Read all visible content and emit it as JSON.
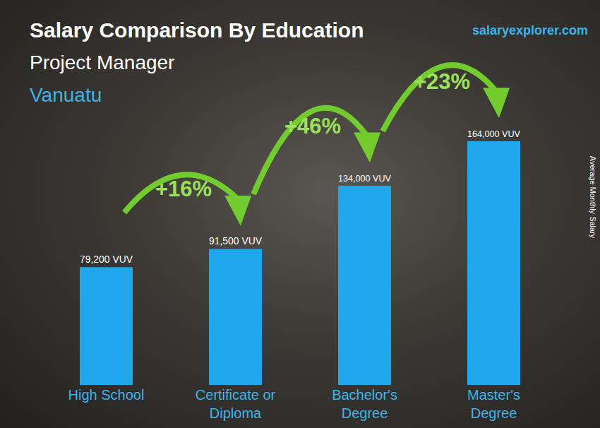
{
  "chart_data": {
    "type": "bar",
    "title": "Salary Comparison By Education",
    "subtitle": "Project Manager",
    "location": "Vanuatu",
    "source": "salaryexplorer.com",
    "y_label": "Average Monthly Salary",
    "categories": [
      "High School",
      "Certificate or Diploma",
      "Bachelor's Degree",
      "Master's Degree"
    ],
    "values": [
      79200,
      91500,
      134000,
      164000
    ],
    "value_labels": [
      "79,200 VUV",
      "91,500 VUV",
      "134,000 VUV",
      "164,000 VUV"
    ],
    "annotations": [
      "+16%",
      "+46%",
      "+23%"
    ],
    "color": "#1ea7ea",
    "ylim": [
      0,
      230000
    ],
    "grid": false,
    "data_labels": true,
    "tick_labels": "x"
  }
}
